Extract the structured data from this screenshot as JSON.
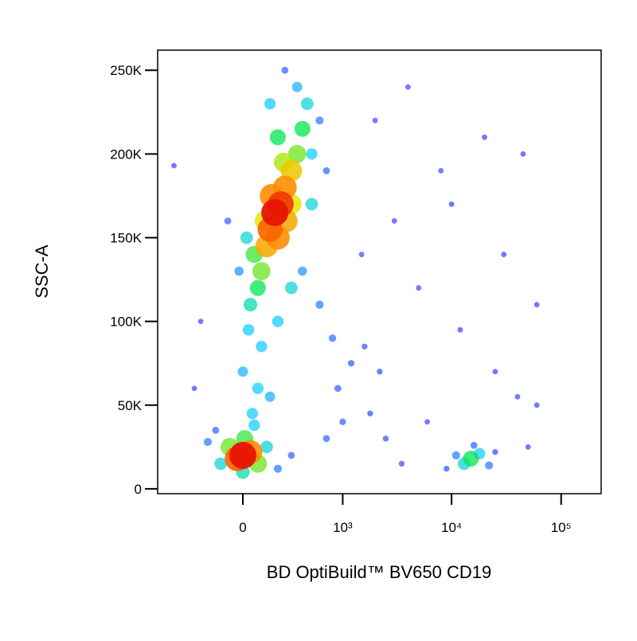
{
  "chart_data": {
    "type": "scatter",
    "x_label": "BD OptiBuild™ BV650 CD19",
    "y_label": "SSC-A",
    "xscale": "biexponential",
    "xlim": [
      -725,
      232000
    ],
    "ylim": [
      -2900,
      262000
    ],
    "xticks": [
      0,
      {
        "value": 1000,
        "label": "10³"
      },
      {
        "value": 10000,
        "label": "10⁴"
      },
      {
        "value": 100000,
        "label": "10⁵"
      }
    ],
    "yticks": [
      {
        "value": 0,
        "label": "0"
      },
      {
        "value": 50000,
        "label": "50K"
      },
      {
        "value": 100000,
        "label": "100K"
      },
      {
        "value": 150000,
        "label": "150K"
      },
      {
        "value": 200000,
        "label": "200K"
      },
      {
        "value": 250000,
        "label": "250K"
      }
    ],
    "points": [
      [
        180,
        165000,
        1
      ],
      [
        220,
        170000,
        0.95
      ],
      [
        150,
        155000,
        0.9
      ],
      [
        250,
        180000,
        0.85
      ],
      [
        130,
        145000,
        0.8
      ],
      [
        300,
        190000,
        0.75
      ],
      [
        200,
        150000,
        0.85
      ],
      [
        160,
        175000,
        0.85
      ],
      [
        100,
        130000,
        0.6
      ],
      [
        350,
        200000,
        0.6
      ],
      [
        260,
        160000,
        0.8
      ],
      [
        120,
        160000,
        0.7
      ],
      [
        240,
        195000,
        0.65
      ],
      [
        80,
        120000,
        0.5
      ],
      [
        400,
        215000,
        0.5
      ],
      [
        300,
        170000,
        0.7
      ],
      [
        60,
        140000,
        0.55
      ],
      [
        200,
        210000,
        0.5
      ],
      [
        450,
        230000,
        0.35
      ],
      [
        40,
        110000,
        0.4
      ],
      [
        350,
        240000,
        0.25
      ],
      [
        500,
        200000,
        0.3
      ],
      [
        20,
        150000,
        0.35
      ],
      [
        150,
        230000,
        0.3
      ],
      [
        500,
        170000,
        0.35
      ],
      [
        -20,
        130000,
        0.2
      ],
      [
        600,
        220000,
        0.15
      ],
      [
        250,
        250000,
        0.1
      ],
      [
        -80,
        160000,
        0.1
      ],
      [
        700,
        190000,
        0.1
      ],
      [
        30,
        95000,
        0.3
      ],
      [
        100,
        85000,
        0.3
      ],
      [
        200,
        100000,
        0.3
      ],
      [
        300,
        120000,
        0.35
      ],
      [
        0,
        70000,
        0.25
      ],
      [
        80,
        60000,
        0.3
      ],
      [
        400,
        130000,
        0.2
      ],
      [
        50,
        45000,
        0.3
      ],
      [
        150,
        55000,
        0.25
      ],
      [
        600,
        110000,
        0.15
      ],
      [
        0,
        20000,
        1
      ],
      [
        -30,
        18000,
        0.9
      ],
      [
        40,
        22000,
        0.85
      ],
      [
        -70,
        25000,
        0.6
      ],
      [
        80,
        15000,
        0.6
      ],
      [
        10,
        30000,
        0.55
      ],
      [
        -120,
        15000,
        0.35
      ],
      [
        130,
        25000,
        0.35
      ],
      [
        0,
        10000,
        0.4
      ],
      [
        -200,
        28000,
        0.15
      ],
      [
        200,
        12000,
        0.15
      ],
      [
        60,
        38000,
        0.3
      ],
      [
        -150,
        35000,
        0.1
      ],
      [
        300,
        20000,
        0.1
      ],
      [
        800,
        90000,
        0.12
      ],
      [
        1200,
        75000,
        0.08
      ],
      [
        900,
        60000,
        0.1
      ],
      [
        1600,
        85000,
        0.05
      ],
      [
        2200,
        70000,
        0.05
      ],
      [
        1000,
        40000,
        0.08
      ],
      [
        1800,
        45000,
        0.05
      ],
      [
        700,
        30000,
        0.1
      ],
      [
        2500,
        30000,
        0.05
      ],
      [
        3500,
        15000,
        0.05
      ],
      [
        15000,
        18000,
        0.5
      ],
      [
        13000,
        15000,
        0.35
      ],
      [
        18000,
        21000,
        0.3
      ],
      [
        11000,
        20000,
        0.15
      ],
      [
        22000,
        14000,
        0.15
      ],
      [
        16000,
        26000,
        0.1
      ],
      [
        9000,
        12000,
        0.05
      ],
      [
        25000,
        22000,
        0.05
      ],
      [
        3000,
        160000,
        0.03
      ],
      [
        8000,
        190000,
        0.03
      ],
      [
        20000,
        210000,
        0.03
      ],
      [
        45000,
        200000,
        0.03
      ],
      [
        5000,
        120000,
        0.03
      ],
      [
        30000,
        140000,
        0.03
      ],
      [
        2000,
        220000,
        0.03
      ],
      [
        12000,
        95000,
        0.03
      ],
      [
        60000,
        110000,
        0.03
      ],
      [
        4000,
        240000,
        0.03
      ],
      [
        -500,
        193000,
        0.03
      ],
      [
        -300,
        60000,
        0.03
      ],
      [
        40000,
        55000,
        0.03
      ],
      [
        60000,
        50000,
        0.03
      ],
      [
        6000,
        40000,
        0.03
      ],
      [
        25000,
        70000,
        0.03
      ],
      [
        1500,
        140000,
        0.03
      ],
      [
        10000,
        170000,
        0.03
      ],
      [
        -250,
        100000,
        0.03
      ],
      [
        50000,
        25000,
        0.03
      ]
    ]
  }
}
